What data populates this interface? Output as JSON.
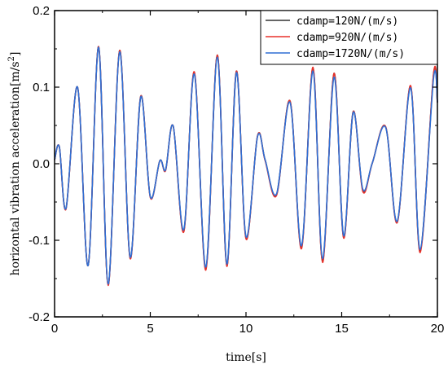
{
  "chart_data": {
    "type": "line",
    "title": "",
    "xlabel": "time[s]",
    "ylabel": "horizontal vibration acceleration[m/s",
    "ylabel_sup": "2",
    "ylabel_close": "]",
    "xlim": [
      0,
      20
    ],
    "ylim": [
      -0.2,
      0.2
    ],
    "xticks": [
      0,
      5,
      10,
      15,
      20
    ],
    "xtick_labels": [
      "0",
      "5",
      "10",
      "15",
      "20"
    ],
    "yticks": [
      -0.2,
      -0.1,
      0.0,
      0.1,
      0.2
    ],
    "ytick_labels": [
      "-0.2",
      "-0.1",
      "0.0",
      "0.1",
      "0.2"
    ],
    "grid": false,
    "legend_position": "top-right",
    "series": [
      {
        "name": "cdamp=120N/(m/s)",
        "color": "#333333",
        "x": [
          0,
          0.25,
          0.6,
          1.2,
          1.75,
          2.3,
          2.8,
          3.4,
          3.95,
          4.5,
          5.0,
          5.5,
          5.8,
          6.2,
          6.75,
          7.3,
          7.9,
          8.5,
          9.0,
          9.5,
          10.0,
          10.6,
          11.0,
          11.6,
          12.3,
          12.9,
          13.5,
          14.0,
          14.6,
          15.1,
          15.6,
          16.1,
          16.6,
          17.3,
          17.9,
          18.6,
          19.1,
          19.8,
          20.0
        ],
        "y": [
          0.005,
          0.022,
          -0.058,
          0.1,
          -0.133,
          0.153,
          -0.158,
          0.148,
          -0.123,
          0.088,
          -0.043,
          0.004,
          -0.008,
          0.049,
          -0.088,
          0.119,
          -0.137,
          0.142,
          -0.133,
          0.121,
          -0.097,
          0.036,
          0.005,
          -0.04,
          0.082,
          -0.109,
          0.125,
          -0.127,
          0.118,
          -0.096,
          0.068,
          -0.034,
          0.001,
          0.048,
          -0.076,
          0.101,
          -0.114,
          0.117,
          0.08
        ]
      },
      {
        "name": "cdamp=920N/(m/s)",
        "color": "#e8312a",
        "x": [
          0,
          0.25,
          0.6,
          1.2,
          1.75,
          2.3,
          2.8,
          3.4,
          3.95,
          4.5,
          5.0,
          5.5,
          5.8,
          6.2,
          6.75,
          7.3,
          7.9,
          8.5,
          9.0,
          9.5,
          10.0,
          10.6,
          11.0,
          11.6,
          12.3,
          12.9,
          13.5,
          14.0,
          14.6,
          15.1,
          15.6,
          16.1,
          16.6,
          17.3,
          17.9,
          18.6,
          19.1,
          19.8,
          20.0
        ],
        "y": [
          0.005,
          0.022,
          -0.059,
          0.1,
          -0.133,
          0.153,
          -0.159,
          0.148,
          -0.124,
          0.088,
          -0.044,
          0.004,
          -0.009,
          0.049,
          -0.089,
          0.12,
          -0.139,
          0.142,
          -0.134,
          0.121,
          -0.098,
          0.036,
          0.004,
          -0.041,
          0.082,
          -0.111,
          0.126,
          -0.129,
          0.118,
          -0.097,
          0.068,
          -0.036,
          0.001,
          0.048,
          -0.077,
          0.102,
          -0.116,
          0.118,
          0.08
        ]
      },
      {
        "name": "cdamp=1720N/(m/s)",
        "color": "#2f6fd4",
        "x": [
          0,
          0.25,
          0.6,
          1.2,
          1.75,
          2.3,
          2.8,
          3.4,
          3.95,
          4.5,
          5.0,
          5.5,
          5.8,
          6.2,
          6.75,
          7.3,
          7.9,
          8.5,
          9.0,
          9.5,
          10.0,
          10.6,
          11.0,
          11.6,
          12.3,
          12.9,
          13.5,
          14.0,
          14.6,
          15.1,
          15.6,
          16.1,
          16.6,
          17.3,
          17.9,
          18.6,
          19.1,
          19.8,
          20.0
        ],
        "y": [
          0.005,
          0.022,
          -0.058,
          0.1,
          -0.133,
          0.152,
          -0.157,
          0.146,
          -0.122,
          0.087,
          -0.043,
          0.004,
          -0.008,
          0.049,
          -0.086,
          0.117,
          -0.135,
          0.139,
          -0.131,
          0.119,
          -0.095,
          0.035,
          0.005,
          -0.039,
          0.08,
          -0.107,
          0.121,
          -0.124,
          0.113,
          -0.094,
          0.067,
          -0.033,
          0.001,
          0.047,
          -0.075,
          0.099,
          -0.112,
          0.112,
          0.08
        ]
      }
    ]
  }
}
